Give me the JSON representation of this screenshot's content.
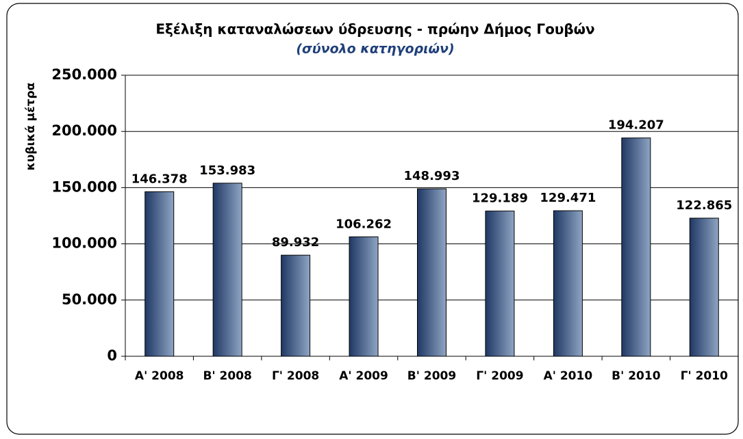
{
  "chart_data": {
    "type": "bar",
    "title": "Εξέλιξη καταναλώσεων ύδρευσης - πρώην Δήμος Γουβών",
    "subtitle": "(σύνολο κατηγοριών)",
    "y_label": "κυβικά μέτρα",
    "categories": [
      "Α' 2008",
      "Β' 2008",
      "Γ' 2008",
      "Α' 2009",
      "Β' 2009",
      "Γ' 2009",
      "Α' 2010",
      "Β' 2010",
      "Γ' 2010"
    ],
    "values": [
      146378,
      153983,
      89932,
      106262,
      148993,
      129189,
      129471,
      194207,
      122865
    ],
    "value_labels": [
      "146.378",
      "153.983",
      "89.932",
      "106.262",
      "148.993",
      "129.189",
      "129.471",
      "194.207",
      "122.865"
    ],
    "color": "#1f3864",
    "ylim": [
      0,
      250000
    ],
    "yticks": [
      0,
      {
        "value": 50000,
        "label": "50.000"
      },
      {
        "value": 100000,
        "label": "100.000"
      },
      {
        "value": 150000,
        "label": "150.000"
      },
      {
        "value": 200000,
        "label": "200.000"
      },
      {
        "value": 250000,
        "label": "250.000"
      }
    ],
    "grid": true
  }
}
